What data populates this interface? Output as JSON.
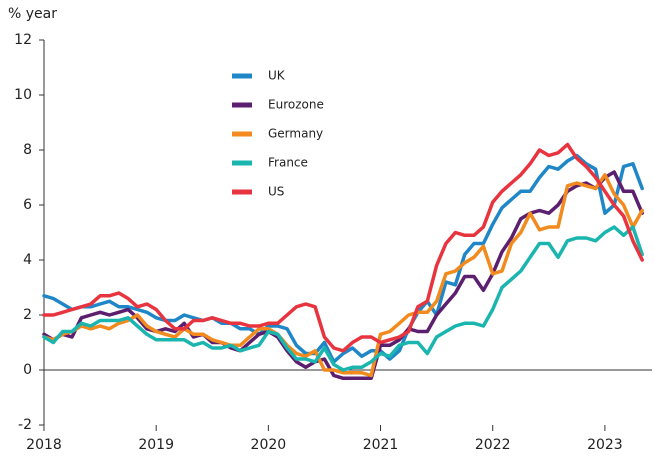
{
  "chart_data": {
    "type": "line",
    "y_label": "% year",
    "x": [
      2018,
      2018.083,
      2018.167,
      2018.25,
      2018.333,
      2018.417,
      2018.5,
      2018.583,
      2018.667,
      2018.75,
      2018.833,
      2018.917,
      2019,
      2019.083,
      2019.167,
      2019.25,
      2019.333,
      2019.417,
      2019.5,
      2019.583,
      2019.667,
      2019.75,
      2019.833,
      2019.917,
      2020,
      2020.083,
      2020.167,
      2020.25,
      2020.333,
      2020.417,
      2020.5,
      2020.583,
      2020.667,
      2020.75,
      2020.833,
      2020.917,
      2021,
      2021.083,
      2021.167,
      2021.25,
      2021.333,
      2021.417,
      2021.5,
      2021.583,
      2021.667,
      2021.75,
      2021.833,
      2021.917,
      2022,
      2022.083,
      2022.167,
      2022.25,
      2022.333,
      2022.417,
      2022.5,
      2022.583,
      2022.667,
      2022.75,
      2022.833,
      2022.917,
      2023,
      2023.083,
      2023.167,
      2023.25,
      2023.333
    ],
    "series": [
      {
        "name": "UK",
        "color": "#1f87c8",
        "values": [
          2.7,
          2.6,
          2.4,
          2.2,
          2.3,
          2.3,
          2.4,
          2.5,
          2.3,
          2.3,
          2.2,
          2.1,
          1.9,
          1.8,
          1.8,
          2.0,
          1.9,
          1.8,
          1.9,
          1.7,
          1.7,
          1.5,
          1.5,
          1.3,
          1.6,
          1.6,
          1.5,
          0.9,
          0.6,
          0.6,
          1.0,
          0.3,
          0.6,
          0.8,
          0.5,
          0.7,
          0.7,
          0.4,
          0.7,
          1.5,
          2.1,
          2.5,
          2.0,
          3.2,
          3.1,
          4.2,
          4.6,
          4.6,
          5.3,
          5.9,
          6.2,
          6.5,
          6.5,
          7.0,
          7.4,
          7.3,
          7.6,
          7.8,
          7.5,
          7.3,
          5.7,
          6.0,
          7.4,
          7.5,
          6.6
        ]
      },
      {
        "name": "Eurozone",
        "color": "#5c1e6e",
        "values": [
          1.3,
          1.1,
          1.3,
          1.2,
          1.9,
          2.0,
          2.1,
          2.0,
          2.1,
          2.2,
          1.9,
          1.5,
          1.4,
          1.5,
          1.4,
          1.7,
          1.2,
          1.3,
          1.0,
          1.0,
          0.8,
          0.7,
          1.0,
          1.3,
          1.4,
          1.2,
          0.7,
          0.3,
          0.1,
          0.3,
          0.4,
          -0.2,
          -0.3,
          -0.3,
          -0.3,
          -0.3,
          0.9,
          0.9,
          1.1,
          1.5,
          1.4,
          1.4,
          2.0,
          2.4,
          2.8,
          3.4,
          3.4,
          2.9,
          3.5,
          4.3,
          4.8,
          5.5,
          5.7,
          5.8,
          5.7,
          6.0,
          6.5,
          6.7,
          6.8,
          6.6,
          7.0,
          7.2,
          6.5,
          6.5,
          5.7
        ]
      },
      {
        "name": "Germany",
        "color": "#f28a1e",
        "values": [
          1.2,
          1.1,
          1.3,
          1.4,
          1.6,
          1.5,
          1.6,
          1.5,
          1.7,
          1.8,
          2.0,
          1.6,
          1.4,
          1.3,
          1.2,
          1.5,
          1.3,
          1.3,
          1.1,
          1.0,
          0.9,
          0.9,
          1.2,
          1.5,
          1.5,
          1.3,
          0.9,
          0.6,
          0.5,
          0.7,
          0.0,
          0.0,
          -0.1,
          -0.1,
          -0.1,
          -0.2,
          1.3,
          1.4,
          1.7,
          2.0,
          2.1,
          2.1,
          2.5,
          3.5,
          3.6,
          3.9,
          4.1,
          4.5,
          3.5,
          3.6,
          4.6,
          5.0,
          5.7,
          5.1,
          5.2,
          5.2,
          6.7,
          6.8,
          6.7,
          6.6,
          7.1,
          6.4,
          6.0,
          5.2,
          5.8
        ]
      },
      {
        "name": "France",
        "color": "#1bb5b0",
        "values": [
          1.2,
          1.0,
          1.4,
          1.4,
          1.7,
          1.6,
          1.8,
          1.8,
          1.8,
          1.9,
          1.6,
          1.3,
          1.1,
          1.1,
          1.1,
          1.1,
          0.9,
          1.0,
          0.8,
          0.8,
          0.9,
          0.7,
          0.8,
          0.9,
          1.4,
          1.3,
          0.8,
          0.4,
          0.4,
          0.3,
          0.8,
          0.2,
          0.0,
          0.1,
          0.1,
          0.3,
          0.6,
          0.5,
          0.9,
          1.0,
          1.0,
          0.6,
          1.2,
          1.4,
          1.6,
          1.7,
          1.7,
          1.6,
          2.2,
          3.0,
          3.3,
          3.6,
          4.1,
          4.6,
          4.6,
          4.1,
          4.7,
          4.8,
          4.8,
          4.7,
          5.0,
          5.2,
          4.9,
          5.2,
          4.2
        ]
      },
      {
        "name": "US",
        "color": "#e8343f",
        "values": [
          2.0,
          2.0,
          2.1,
          2.2,
          2.3,
          2.4,
          2.7,
          2.7,
          2.8,
          2.6,
          2.3,
          2.4,
          2.2,
          1.8,
          1.5,
          1.5,
          1.8,
          1.8,
          1.9,
          1.8,
          1.7,
          1.7,
          1.6,
          1.6,
          1.7,
          1.7,
          2.0,
          2.3,
          2.4,
          2.3,
          1.2,
          0.8,
          0.7,
          1.0,
          1.2,
          1.2,
          1.0,
          1.1,
          1.2,
          1.4,
          2.3,
          2.5,
          3.8,
          4.6,
          5.0,
          4.9,
          4.9,
          5.2,
          6.1,
          6.5,
          6.8,
          7.1,
          7.5,
          8.0,
          7.8,
          7.9,
          8.2,
          7.7,
          7.4,
          7.0,
          6.5,
          6.0,
          5.6,
          4.7,
          4.0
        ]
      }
    ],
    "xlim": [
      2018,
      2023.42
    ],
    "xticks": [
      2018,
      2019,
      2020,
      2021,
      2022,
      2023
    ],
    "ylim": [
      -2,
      12
    ],
    "yticks": [
      -2,
      0,
      2,
      4,
      6,
      8,
      10,
      12
    ],
    "grid": false
  }
}
